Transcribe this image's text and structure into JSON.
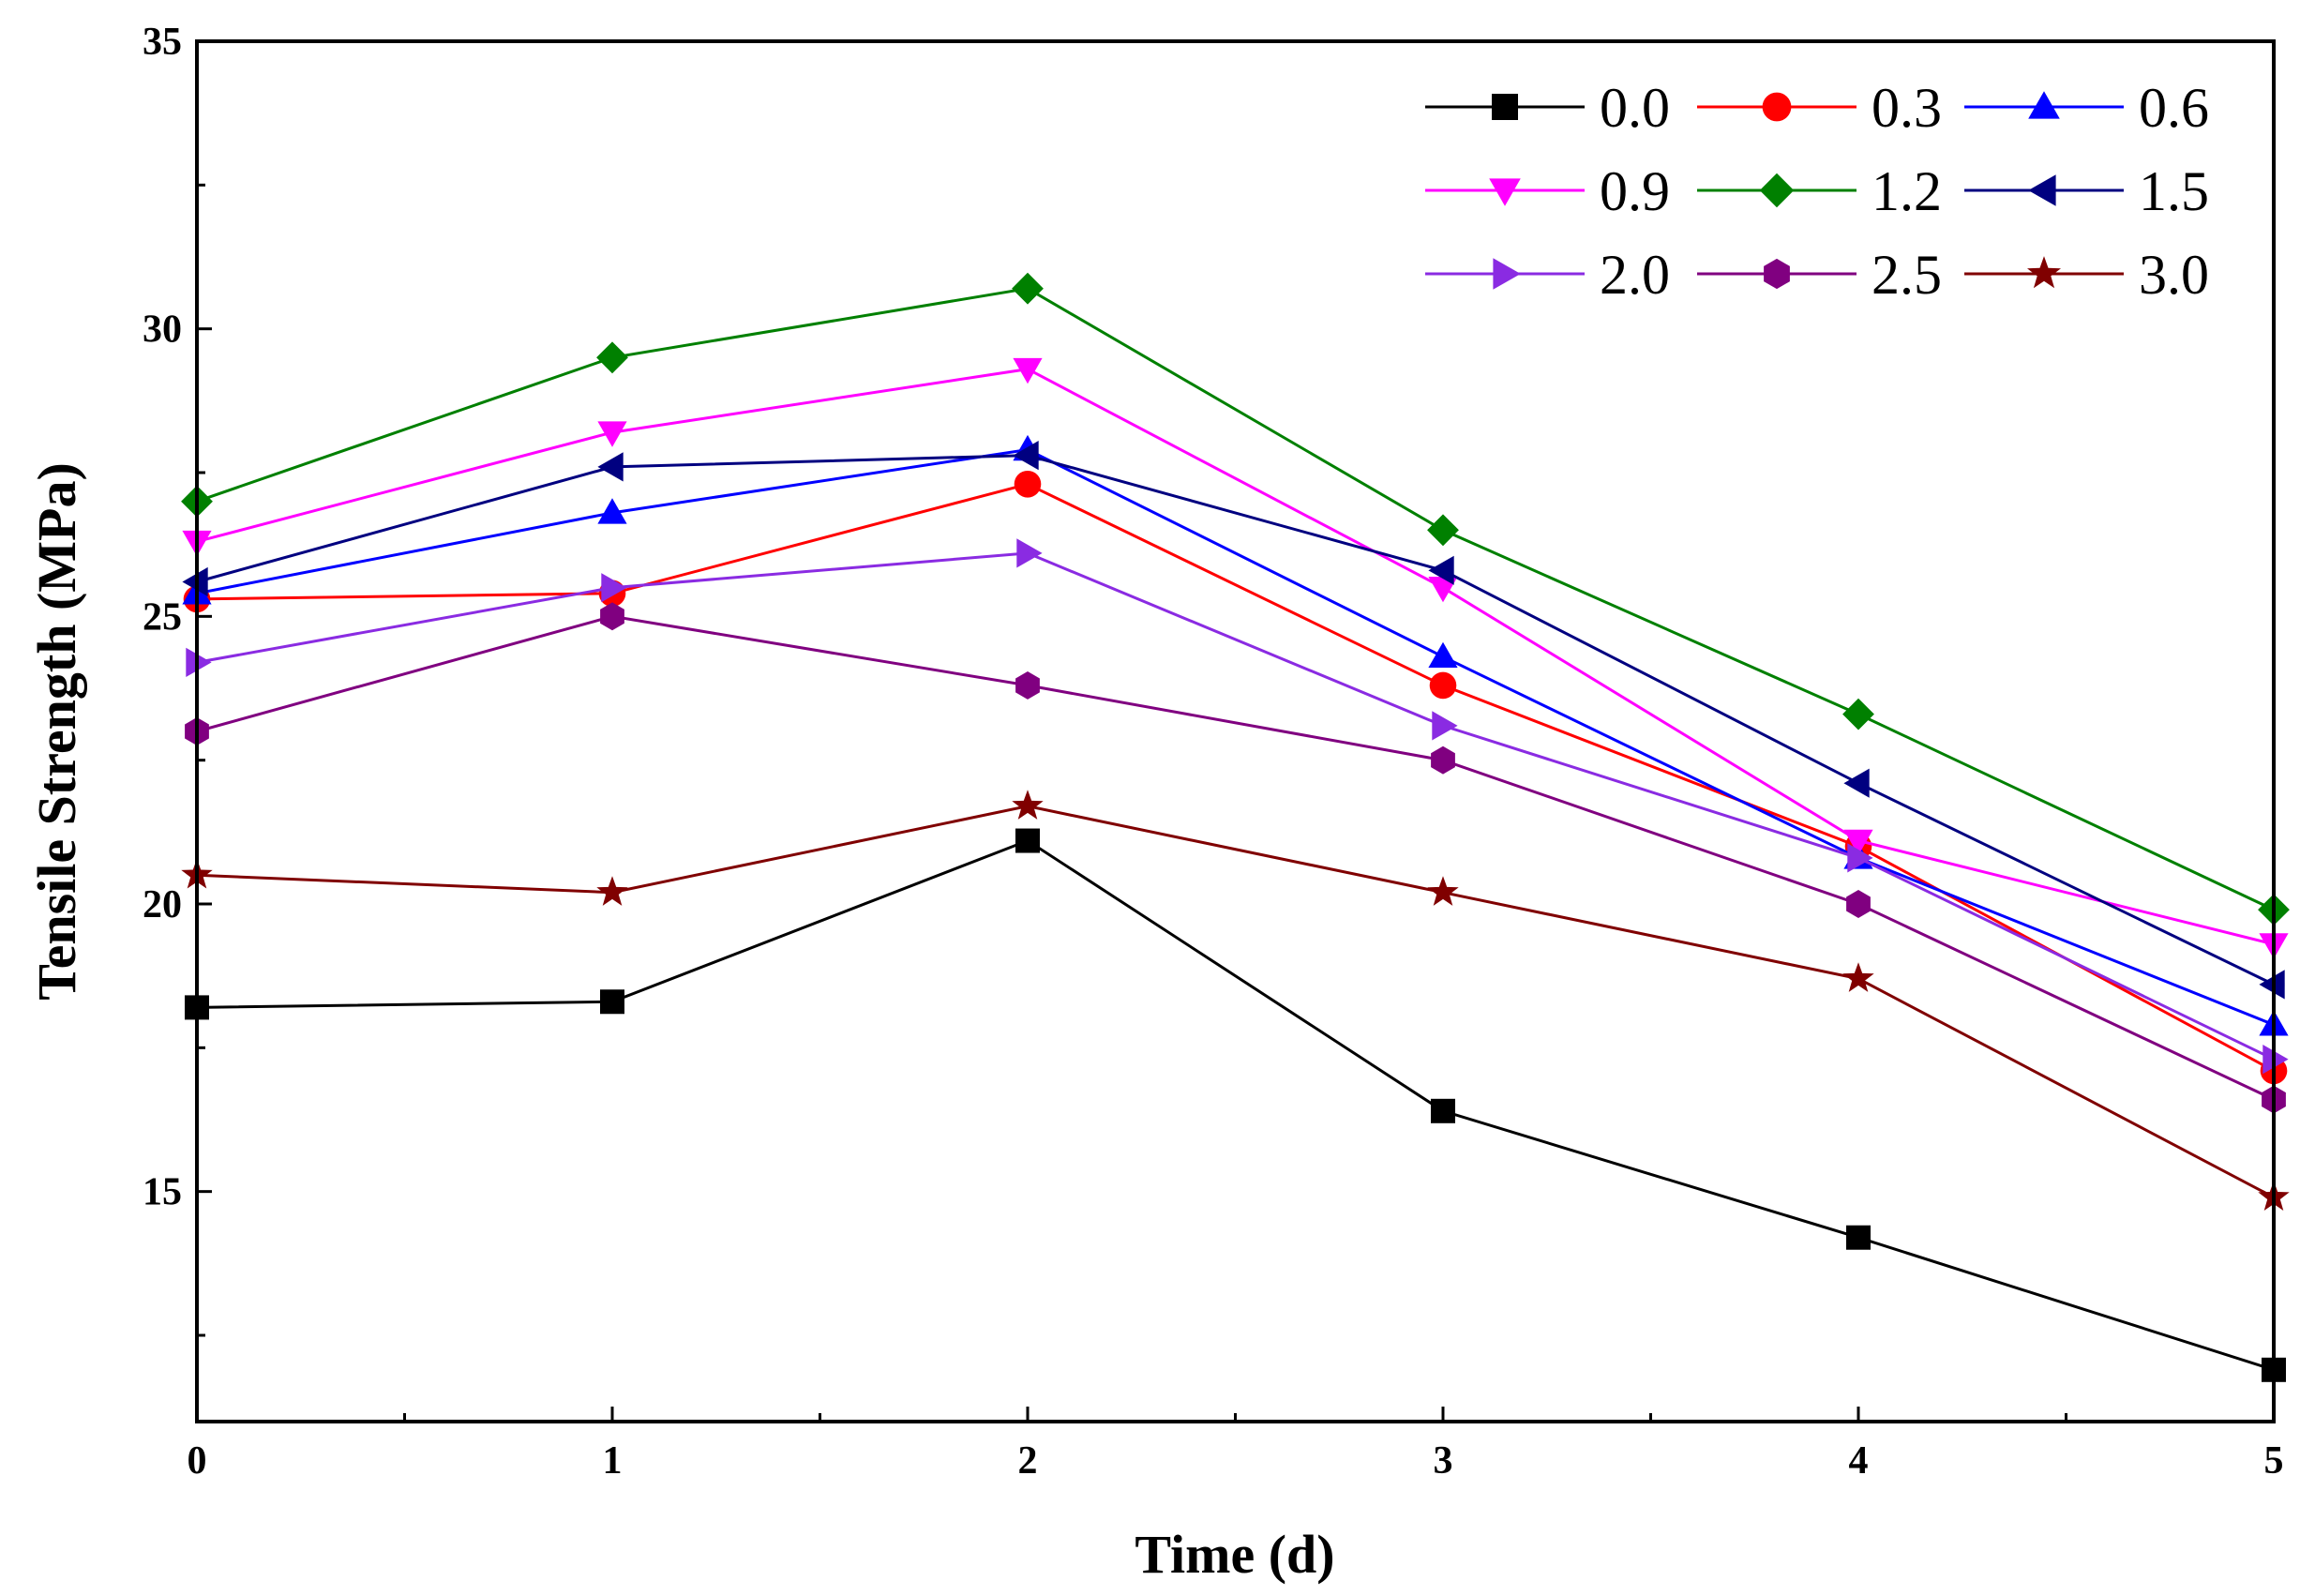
{
  "chart_data": {
    "type": "line",
    "title": "",
    "xlabel": "Time (d)",
    "ylabel": "Tensile Strength (MPa)",
    "xlim": [
      0,
      5
    ],
    "ylim": [
      11,
      35
    ],
    "xticks": [
      0,
      1,
      2,
      3,
      4,
      5
    ],
    "yticks": [
      15,
      20,
      25,
      30,
      35
    ],
    "xtick_labels": [
      "0",
      "1",
      "2",
      "3",
      "4",
      "5"
    ],
    "ytick_labels": [
      "15",
      "20",
      "25",
      "30",
      "35"
    ],
    "grid": false,
    "legend_position": "top-right",
    "x": [
      0,
      1,
      2,
      3,
      4,
      5
    ],
    "series": [
      {
        "name": "0.0",
        "color": "#000000",
        "marker": "square",
        "values": [
          18.2,
          18.3,
          21.1,
          16.4,
          14.2,
          11.9
        ]
      },
      {
        "name": "0.3",
        "color": "#ff0000",
        "marker": "circle",
        "values": [
          25.3,
          25.4,
          27.3,
          23.8,
          21.0,
          17.1
        ]
      },
      {
        "name": "0.6",
        "color": "#0000ff",
        "marker": "triangle-up",
        "values": [
          25.4,
          26.8,
          27.9,
          24.3,
          20.8,
          17.9
        ]
      },
      {
        "name": "0.9",
        "color": "#ff00ff",
        "marker": "triangle-down",
        "values": [
          26.3,
          28.2,
          29.3,
          25.5,
          21.1,
          19.3
        ]
      },
      {
        "name": "1.2",
        "color": "#008000",
        "marker": "diamond",
        "values": [
          27.0,
          29.5,
          30.7,
          26.5,
          23.3,
          19.9
        ]
      },
      {
        "name": "1.5",
        "color": "#000080",
        "marker": "triangle-left",
        "values": [
          25.6,
          27.6,
          27.8,
          25.8,
          22.1,
          18.6
        ]
      },
      {
        "name": "2.0",
        "color": "#8a2be2",
        "marker": "triangle-right",
        "values": [
          24.2,
          25.5,
          26.1,
          23.1,
          20.8,
          17.3
        ]
      },
      {
        "name": "2.5",
        "color": "#800080",
        "marker": "hexagon",
        "values": [
          23.0,
          25.0,
          23.8,
          22.5,
          20.0,
          16.6
        ]
      },
      {
        "name": "3.0",
        "color": "#800000",
        "marker": "star",
        "values": [
          20.5,
          20.2,
          21.7,
          20.2,
          18.7,
          14.9
        ]
      }
    ]
  }
}
